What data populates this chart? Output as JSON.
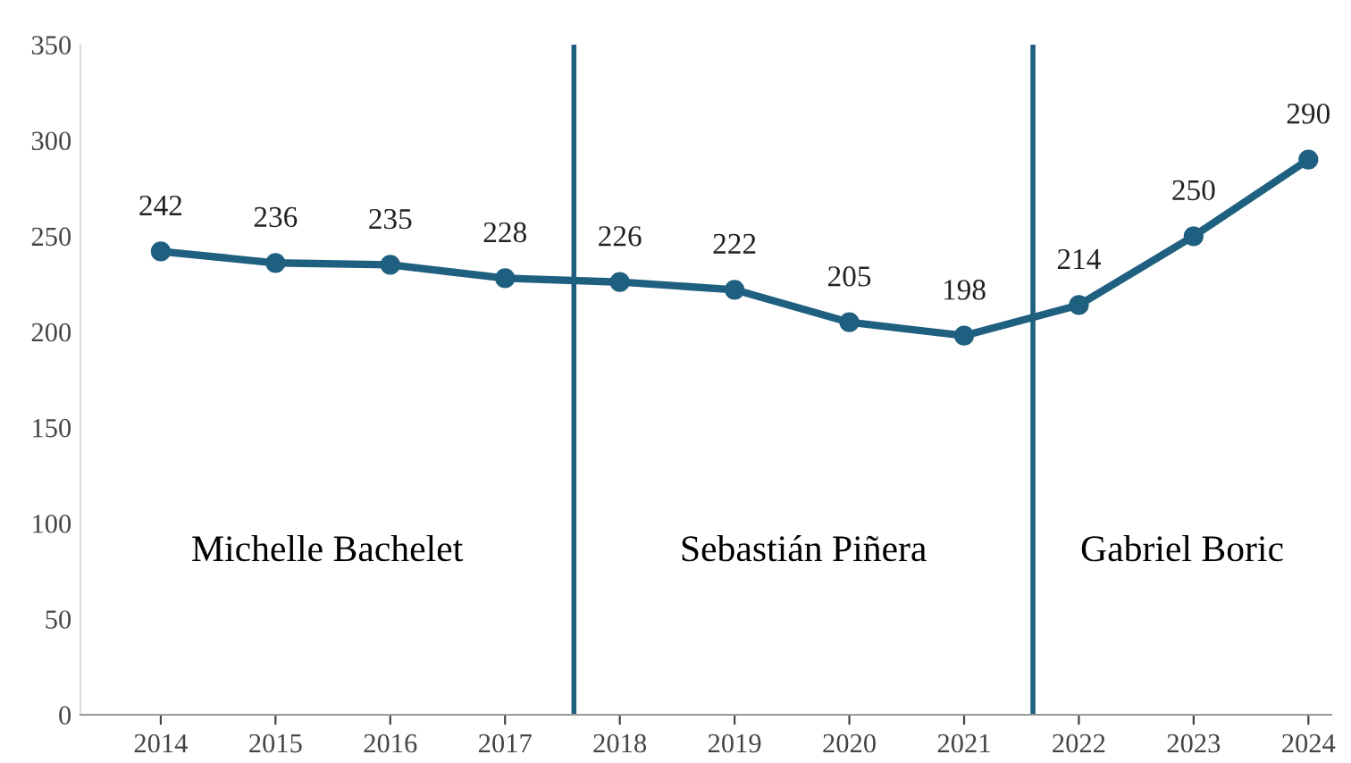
{
  "chart_data": {
    "type": "line",
    "x": [
      2014,
      2015,
      2016,
      2017,
      2018,
      2019,
      2020,
      2021,
      2022,
      2023,
      2024
    ],
    "series": [
      {
        "color": "#1f5f7f",
        "values": [
          242,
          236,
          235,
          228,
          226,
          222,
          205,
          198,
          214,
          250,
          290
        ]
      }
    ],
    "data_labels": true,
    "marker": "circle",
    "line_style": "solid",
    "grid": false,
    "legend": false,
    "xlim": [
      2013.3,
      2024.2
    ],
    "xticks": [
      2014,
      2015,
      2016,
      2017,
      2018,
      2019,
      2020,
      2021,
      2022,
      2023,
      2024
    ],
    "ylim": [
      0,
      350
    ],
    "yticks": [
      0,
      50,
      100,
      150,
      200,
      250,
      300,
      350
    ],
    "ref_lines": [
      {
        "axis": "x",
        "value": 2017.6,
        "color": "#1f5f7f"
      },
      {
        "axis": "x",
        "value": 2021.6,
        "color": "#1f5f7f"
      }
    ],
    "annotations": [
      "Michelle Bachelet",
      "Sebastián Piñera",
      "Gabriel Boric"
    ]
  }
}
